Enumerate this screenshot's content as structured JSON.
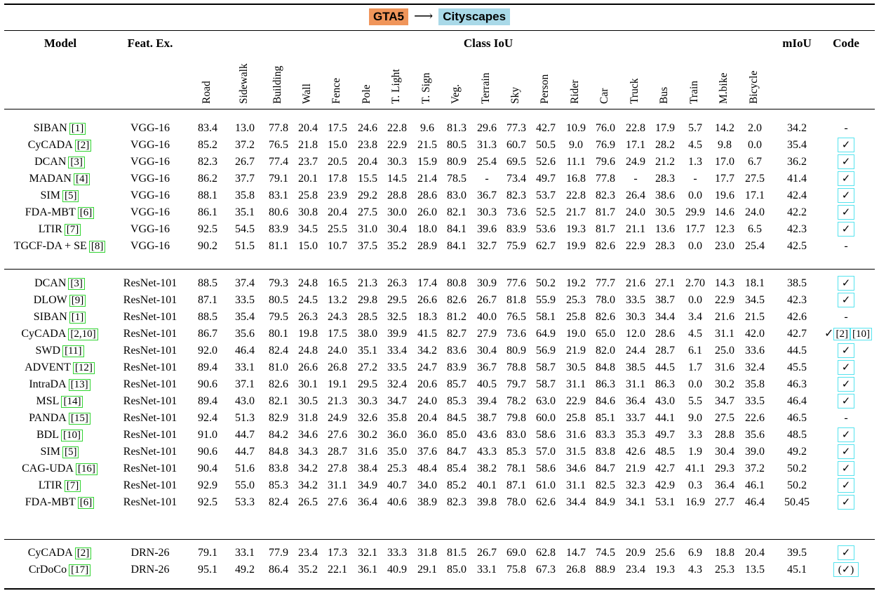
{
  "caption": {
    "source": "GTA5",
    "arrow": "⟶",
    "target": "Cityscapes"
  },
  "header": {
    "model": "Model",
    "feat": "Feat. Ex.",
    "class_iou": "Class IoU",
    "miou": "mIoU",
    "code": "Code",
    "classes": [
      "Road",
      "Sidewalk",
      "Building",
      "Wall",
      "Fence",
      "Pole",
      "T. Light",
      "T. Sign",
      "Veg.",
      "Terrain",
      "Sky",
      "Person",
      "Rider",
      "Car",
      "Truck",
      "Bus",
      "Train",
      "M.bike",
      "Bicycle"
    ]
  },
  "groups": [
    {
      "rows": [
        {
          "model": "SIBAN",
          "cite": "[1]",
          "feat": "VGG-16",
          "v": [
            "83.4",
            "13.0",
            "77.8",
            "20.4",
            "17.5",
            "24.6",
            "22.8",
            "9.6",
            "81.3",
            "29.6",
            "77.3",
            "42.7",
            "10.9",
            "76.0",
            "22.8",
            "17.9",
            "5.7",
            "14.2",
            "2.0"
          ],
          "miou": "34.2",
          "code": {
            "kind": "dash",
            "text": "-"
          }
        },
        {
          "model": "CyCADA",
          "cite": "[2]",
          "feat": "VGG-16",
          "v": [
            "85.2",
            "37.2",
            "76.5",
            "21.8",
            "15.0",
            "23.8",
            "22.9",
            "21.5",
            "80.5",
            "31.3",
            "60.7",
            "50.5",
            "9.0",
            "76.9",
            "17.1",
            "28.2",
            "4.5",
            "9.8",
            "0.0"
          ],
          "miou": "35.4",
          "code": {
            "kind": "box",
            "text": "✓"
          }
        },
        {
          "model": "DCAN",
          "cite": "[3]",
          "feat": "VGG-16",
          "v": [
            "82.3",
            "26.7",
            "77.4",
            "23.7",
            "20.5",
            "20.4",
            "30.3",
            "15.9",
            "80.9",
            "25.4",
            "69.5",
            "52.6",
            "11.1",
            "79.6",
            "24.9",
            "21.2",
            "1.3",
            "17.0",
            "6.7"
          ],
          "miou": "36.2",
          "code": {
            "kind": "box",
            "text": "✓"
          }
        },
        {
          "model": "MADAN",
          "cite": "[4]",
          "feat": "VGG-16",
          "v": [
            "86.2",
            "37.7",
            "79.1",
            "20.1",
            "17.8",
            "15.5",
            "14.5",
            "21.4",
            "78.5",
            "-",
            "73.4",
            "49.7",
            "16.8",
            "77.8",
            "-",
            "28.3",
            "-",
            "17.7",
            "27.5"
          ],
          "miou": "41.4",
          "code": {
            "kind": "box",
            "text": "✓"
          }
        },
        {
          "model": "SIM",
          "cite": "[5]",
          "feat": "VGG-16",
          "v": [
            "88.1",
            "35.8",
            "83.1",
            "25.8",
            "23.9",
            "29.2",
            "28.8",
            "28.6",
            "83.0",
            "36.7",
            "82.3",
            "53.7",
            "22.8",
            "82.3",
            "26.4",
            "38.6",
            "0.0",
            "19.6",
            "17.1"
          ],
          "miou": "42.4",
          "code": {
            "kind": "box",
            "text": "✓"
          }
        },
        {
          "model": "FDA-MBT",
          "cite": "[6]",
          "feat": "VGG-16",
          "v": [
            "86.1",
            "35.1",
            "80.6",
            "30.8",
            "20.4",
            "27.5",
            "30.0",
            "26.0",
            "82.1",
            "30.3",
            "73.6",
            "52.5",
            "21.7",
            "81.7",
            "24.0",
            "30.5",
            "29.9",
            "14.6",
            "24.0"
          ],
          "miou": "42.2",
          "code": {
            "kind": "box",
            "text": "✓"
          }
        },
        {
          "model": "LTIR",
          "cite": "[7]",
          "feat": "VGG-16",
          "v": [
            "92.5",
            "54.5",
            "83.9",
            "34.5",
            "25.5",
            "31.0",
            "30.4",
            "18.0",
            "84.1",
            "39.6",
            "83.9",
            "53.6",
            "19.3",
            "81.7",
            "21.1",
            "13.6",
            "17.7",
            "12.3",
            "6.5"
          ],
          "miou": "42.3",
          "code": {
            "kind": "box",
            "text": "✓"
          }
        },
        {
          "model": "TGCF-DA + SE",
          "cite": "[8]",
          "feat": "VGG-16",
          "v": [
            "90.2",
            "51.5",
            "81.1",
            "15.0",
            "10.7",
            "37.5",
            "35.2",
            "28.9",
            "84.1",
            "32.7",
            "75.9",
            "62.7",
            "19.9",
            "82.6",
            "22.9",
            "28.3",
            "0.0",
            "23.0",
            "25.4"
          ],
          "miou": "42.5",
          "code": {
            "kind": "dash",
            "text": "-"
          }
        }
      ]
    },
    {
      "rows": [
        {
          "model": "DCAN",
          "cite": "[3]",
          "feat": "ResNet-101",
          "v": [
            "88.5",
            "37.4",
            "79.3",
            "24.8",
            "16.5",
            "21.3",
            "26.3",
            "17.4",
            "80.8",
            "30.9",
            "77.6",
            "50.2",
            "19.2",
            "77.7",
            "21.6",
            "27.1",
            "2.70",
            "14.3",
            "18.1"
          ],
          "miou": "38.5",
          "code": {
            "kind": "box",
            "text": "✓"
          }
        },
        {
          "model": "DLOW",
          "cite": "[9]",
          "feat": "ResNet-101",
          "v": [
            "87.1",
            "33.5",
            "80.5",
            "24.5",
            "13.2",
            "29.8",
            "29.5",
            "26.6",
            "82.6",
            "26.7",
            "81.8",
            "55.9",
            "25.3",
            "78.0",
            "33.5",
            "38.7",
            "0.0",
            "22.9",
            "34.5"
          ],
          "miou": "42.3",
          "code": {
            "kind": "box",
            "text": "✓"
          }
        },
        {
          "model": "SIBAN",
          "cite": "[1]",
          "feat": "ResNet-101",
          "v": [
            "88.5",
            "35.4",
            "79.5",
            "26.3",
            "24.3",
            "28.5",
            "32.5",
            "18.3",
            "81.2",
            "40.0",
            "76.5",
            "58.1",
            "25.8",
            "82.6",
            "30.3",
            "34.4",
            "3.4",
            "21.6",
            "21.5"
          ],
          "miou": "42.6",
          "code": {
            "kind": "dash",
            "text": "-"
          }
        },
        {
          "model": "CyCADA",
          "cite": "[2,10]",
          "feat": "ResNet-101",
          "v": [
            "86.7",
            "35.6",
            "80.1",
            "19.8",
            "17.5",
            "38.0",
            "39.9",
            "41.5",
            "82.7",
            "27.9",
            "73.6",
            "64.9",
            "19.0",
            "65.0",
            "12.0",
            "28.6",
            "4.5",
            "31.1",
            "42.0"
          ],
          "miou": "42.7",
          "code": {
            "kind": "refs",
            "text": "✓",
            "refs": [
              "[2]",
              "[10]"
            ]
          }
        },
        {
          "model": "SWD",
          "cite": "[11]",
          "feat": "ResNet-101",
          "v": [
            "92.0",
            "46.4",
            "82.4",
            "24.8",
            "24.0",
            "35.1",
            "33.4",
            "34.2",
            "83.6",
            "30.4",
            "80.9",
            "56.9",
            "21.9",
            "82.0",
            "24.4",
            "28.7",
            "6.1",
            "25.0",
            "33.6"
          ],
          "miou": "44.5",
          "code": {
            "kind": "box",
            "text": "✓"
          }
        },
        {
          "model": "ADVENT",
          "cite": "[12]",
          "feat": "ResNet-101",
          "v": [
            "89.4",
            "33.1",
            "81.0",
            "26.6",
            "26.8",
            "27.2",
            "33.5",
            "24.7",
            "83.9",
            "36.7",
            "78.8",
            "58.7",
            "30.5",
            "84.8",
            "38.5",
            "44.5",
            "1.7",
            "31.6",
            "32.4"
          ],
          "miou": "45.5",
          "code": {
            "kind": "box",
            "text": "✓"
          }
        },
        {
          "model": "IntraDA",
          "cite": "[13]",
          "feat": "ResNet-101",
          "v": [
            "90.6",
            "37.1",
            "82.6",
            "30.1",
            "19.1",
            "29.5",
            "32.4",
            "20.6",
            "85.7",
            "40.5",
            "79.7",
            "58.7",
            "31.1",
            "86.3",
            "31.1",
            "86.3",
            "0.0",
            "30.2",
            "35.8"
          ],
          "miou": "46.3",
          "code": {
            "kind": "box",
            "text": "✓"
          }
        },
        {
          "model": "MSL",
          "cite": "[14]",
          "feat": "ResNet-101",
          "v": [
            "89.4",
            "43.0",
            "82.1",
            "30.5",
            "21.3",
            "30.3",
            "34.7",
            "24.0",
            "85.3",
            "39.4",
            "78.2",
            "63.0",
            "22.9",
            "84.6",
            "36.4",
            "43.0",
            "5.5",
            "34.7",
            "33.5"
          ],
          "miou": "46.4",
          "code": {
            "kind": "box",
            "text": "✓"
          }
        },
        {
          "model": "PANDA",
          "cite": "[15]",
          "feat": "ResNet-101",
          "v": [
            "92.4",
            "51.3",
            "82.9",
            "31.8",
            "24.9",
            "32.6",
            "35.8",
            "20.4",
            "84.5",
            "38.7",
            "79.8",
            "60.0",
            "25.8",
            "85.1",
            "33.7",
            "44.1",
            "9.0",
            "27.5",
            "22.6"
          ],
          "miou": "46.5",
          "code": {
            "kind": "dash",
            "text": "-"
          }
        },
        {
          "model": "BDL",
          "cite": "[10]",
          "feat": "ResNet-101",
          "v": [
            "91.0",
            "44.7",
            "84.2",
            "34.6",
            "27.6",
            "30.2",
            "36.0",
            "36.0",
            "85.0",
            "43.6",
            "83.0",
            "58.6",
            "31.6",
            "83.3",
            "35.3",
            "49.7",
            "3.3",
            "28.8",
            "35.6"
          ],
          "miou": "48.5",
          "code": {
            "kind": "box",
            "text": "✓"
          }
        },
        {
          "model": "SIM",
          "cite": "[5]",
          "feat": "ResNet-101",
          "v": [
            "90.6",
            "44.7",
            "84.8",
            "34.3",
            "28.7",
            "31.6",
            "35.0",
            "37.6",
            "84.7",
            "43.3",
            "85.3",
            "57.0",
            "31.5",
            "83.8",
            "42.6",
            "48.5",
            "1.9",
            "30.4",
            "39.0"
          ],
          "miou": "49.2",
          "code": {
            "kind": "box",
            "text": "✓"
          }
        },
        {
          "model": "CAG-UDA",
          "cite": "[16]",
          "feat": "ResNet-101",
          "v": [
            "90.4",
            "51.6",
            "83.8",
            "34.2",
            "27.8",
            "38.4",
            "25.3",
            "48.4",
            "85.4",
            "38.2",
            "78.1",
            "58.6",
            "34.6",
            "84.7",
            "21.9",
            "42.7",
            "41.1",
            "29.3",
            "37.2"
          ],
          "miou": "50.2",
          "code": {
            "kind": "box",
            "text": "✓"
          }
        },
        {
          "model": "LTIR",
          "cite": "[7]",
          "feat": "ResNet-101",
          "v": [
            "92.9",
            "55.0",
            "85.3",
            "34.2",
            "31.1",
            "34.9",
            "40.7",
            "34.0",
            "85.2",
            "40.1",
            "87.1",
            "61.0",
            "31.1",
            "82.5",
            "32.3",
            "42.9",
            "0.3",
            "36.4",
            "46.1"
          ],
          "miou": "50.2",
          "code": {
            "kind": "box",
            "text": "✓"
          }
        },
        {
          "model": "FDA-MBT",
          "cite": "[6]",
          "feat": "ResNet-101",
          "v": [
            "92.5",
            "53.3",
            "82.4",
            "26.5",
            "27.6",
            "36.4",
            "40.6",
            "38.9",
            "82.3",
            "39.8",
            "78.0",
            "62.6",
            "34.4",
            "84.9",
            "34.1",
            "53.1",
            "16.9",
            "27.7",
            "46.4"
          ],
          "miou": "50.45",
          "code": {
            "kind": "box",
            "text": "✓"
          }
        }
      ]
    },
    {
      "rows": [
        {
          "model": "CyCADA",
          "cite": "[2]",
          "feat": "DRN-26",
          "v": [
            "79.1",
            "33.1",
            "77.9",
            "23.4",
            "17.3",
            "32.1",
            "33.3",
            "31.8",
            "81.5",
            "26.7",
            "69.0",
            "62.8",
            "14.7",
            "74.5",
            "20.9",
            "25.6",
            "6.9",
            "18.8",
            "20.4"
          ],
          "miou": "39.5",
          "code": {
            "kind": "box",
            "text": "✓"
          }
        },
        {
          "model": "CrDoCo",
          "cite": "[17]",
          "feat": "DRN-26",
          "v": [
            "95.1",
            "49.2",
            "86.4",
            "35.2",
            "22.1",
            "36.1",
            "40.9",
            "29.1",
            "85.0",
            "33.1",
            "75.8",
            "67.3",
            "26.8",
            "88.9",
            "23.4",
            "19.3",
            "4.3",
            "25.3",
            "13.5"
          ],
          "miou": "45.1",
          "code": {
            "kind": "wide",
            "text": "(✓)"
          }
        }
      ]
    }
  ]
}
